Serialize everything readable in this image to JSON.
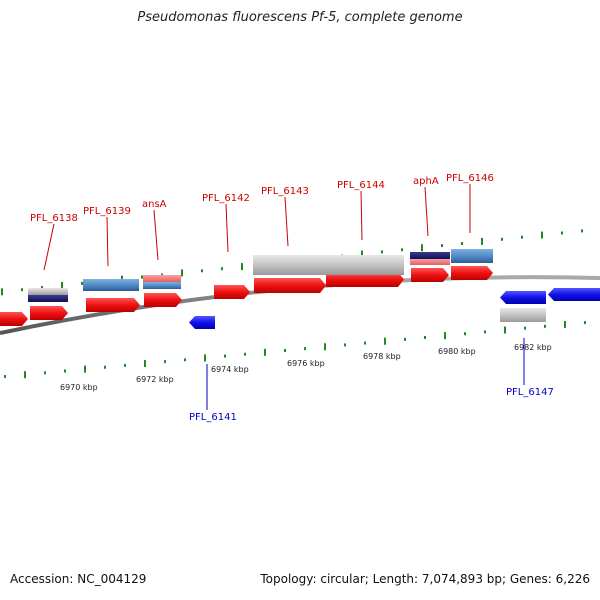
{
  "title": "Pseudomonas fluorescens Pf-5, complete genome",
  "footer": {
    "accession": "Accession: NC_004129",
    "summary": "Topology: circular; Length: 7,074,893 bp; Genes: 6,226"
  },
  "colors": {
    "forward_cds": "#ee1111",
    "reverse_cds": "#1111ee",
    "forward_label": "#cc0000",
    "reverse_label": "#0000cc",
    "backbone": "#777777",
    "tick": "#228822"
  },
  "scale_labels": [
    "6970 kbp",
    "6972 kbp",
    "6974 kbp",
    "6976 kbp",
    "6978 kbp",
    "6980 kbp",
    "6982 kbp"
  ],
  "forward_labels": [
    "PFL_6138",
    "PFL_6139",
    "ansA",
    "PFL_6142",
    "PFL_6143",
    "PFL_6144",
    "aphA",
    "PFL_6146"
  ],
  "reverse_labels": [
    "PFL_6141",
    "PFL_6147"
  ]
}
